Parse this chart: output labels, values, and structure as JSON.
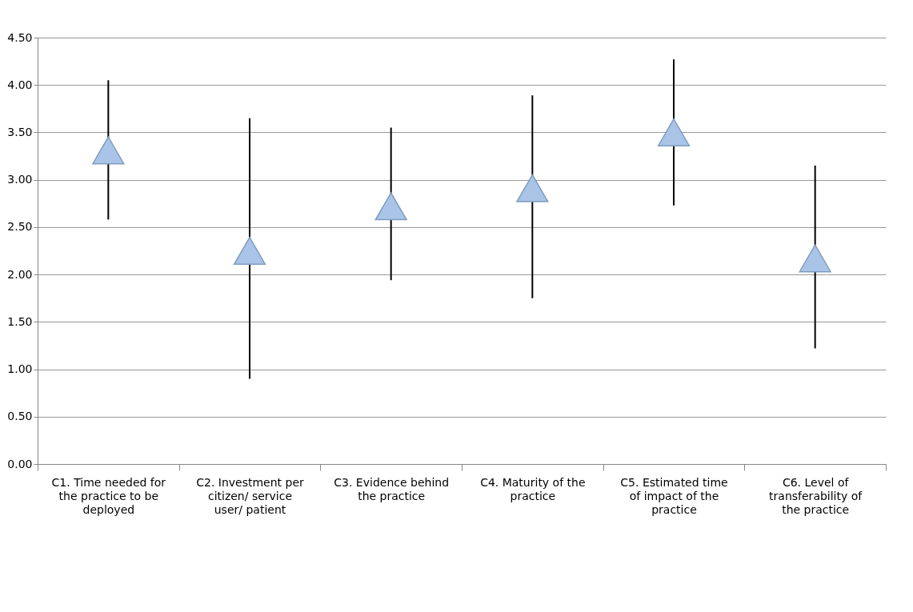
{
  "chart_data": {
    "type": "scatter",
    "marker": "triangle",
    "grid": "y",
    "categories": [
      "C1.    Time needed for the practice to be deployed",
      "C2.    Investment per citizen/ service user/ patient",
      "C3.    Evidence behind the practice",
      "C4.    Maturity of the practice",
      "C5.    Estimated time of impact of the practice",
      "C6.    Level of transferability of the practice"
    ],
    "series": [
      {
        "color": "#a9c4e6",
        "values": [
          3.31,
          2.25,
          2.72,
          2.91,
          3.5,
          2.17
        ],
        "errors": [
          [
            2.58,
            4.05
          ],
          [
            0.9,
            3.65
          ],
          [
            1.94,
            3.55
          ],
          [
            1.75,
            3.89
          ],
          [
            2.73,
            4.27
          ],
          [
            1.22,
            3.15
          ]
        ]
      }
    ],
    "ylim": [
      0,
      4.5
    ],
    "yticks": [
      {
        "value": 0,
        "label": "0.00"
      },
      {
        "value": 0.5,
        "label": "0.50"
      },
      {
        "value": 1,
        "label": "1.00"
      },
      {
        "value": 1.5,
        "label": "1.50"
      },
      {
        "value": 2,
        "label": "2.00"
      },
      {
        "value": 2.5,
        "label": "2.50"
      },
      {
        "value": 3,
        "label": "3.00"
      },
      {
        "value": 3.5,
        "label": "3.50"
      },
      {
        "value": 4,
        "label": "4.00"
      },
      {
        "value": 4.5,
        "label": "4.50"
      }
    ]
  }
}
